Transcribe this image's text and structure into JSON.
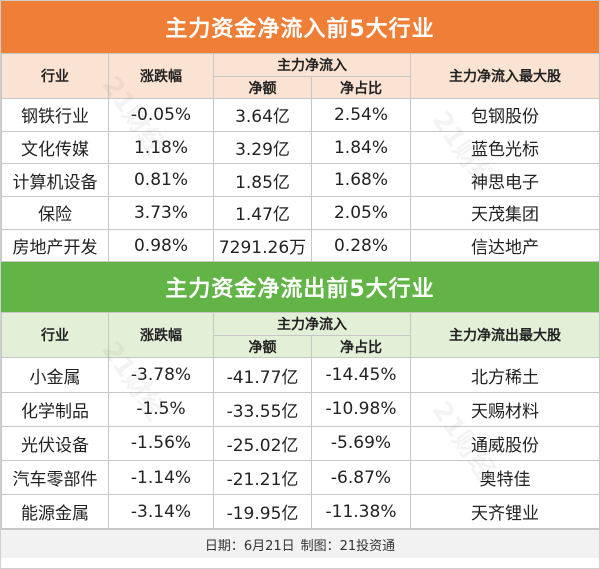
{
  "inflow": {
    "title": "主力资金净流入前5大行业",
    "headers": {
      "industry": "行业",
      "change": "涨跌幅",
      "group": "主力净流入",
      "net": "净额",
      "ratio": "净占比",
      "top_stock": "主力净流入最大股"
    },
    "rows": [
      {
        "industry": "钢铁行业",
        "change": "-0.05%",
        "net": "3.64亿",
        "ratio": "2.54%",
        "stock": "包钢股份"
      },
      {
        "industry": "文化传媒",
        "change": "1.18%",
        "net": "3.29亿",
        "ratio": "1.84%",
        "stock": "蓝色光标"
      },
      {
        "industry": "计算机设备",
        "change": "0.81%",
        "net": "1.85亿",
        "ratio": "1.68%",
        "stock": "神思电子"
      },
      {
        "industry": "保险",
        "change": "3.73%",
        "net": "1.47亿",
        "ratio": "2.05%",
        "stock": "天茂集团"
      },
      {
        "industry": "房地产开发",
        "change": "0.98%",
        "net": "7291.26万",
        "ratio": "0.28%",
        "stock": "信达地产"
      }
    ]
  },
  "outflow": {
    "title": "主力资金净流出前5大行业",
    "headers": {
      "industry": "行业",
      "change": "涨跌幅",
      "group": "主力净流入",
      "net": "净额",
      "ratio": "净占比",
      "top_stock": "主力净流出最大股"
    },
    "rows": [
      {
        "industry": "小金属",
        "change": "-3.78%",
        "net": "-41.77亿",
        "ratio": "-14.45%",
        "stock": "北方稀土"
      },
      {
        "industry": "化学制品",
        "change": "-1.5%",
        "net": "-33.55亿",
        "ratio": "-10.98%",
        "stock": "天赐材料"
      },
      {
        "industry": "光伏设备",
        "change": "-1.56%",
        "net": "-25.02亿",
        "ratio": "-5.69%",
        "stock": "通威股份"
      },
      {
        "industry": "汽车零部件",
        "change": "-1.14%",
        "net": "-21.21亿",
        "ratio": "-6.87%",
        "stock": "奥特佳"
      },
      {
        "industry": "能源金属",
        "change": "-3.14%",
        "net": "-19.95亿",
        "ratio": "-11.38%",
        "stock": "天齐锂业"
      }
    ]
  },
  "footer": {
    "date": "日期：6月21日",
    "maker": "制图：21投资通"
  },
  "watermark": "21财经",
  "colors": {
    "inflow_banner": "#ef7e37",
    "outflow_banner": "#62b446",
    "inflow_header_bg": "#fbe3d3",
    "outflow_header_bg": "#e3f0d8"
  }
}
